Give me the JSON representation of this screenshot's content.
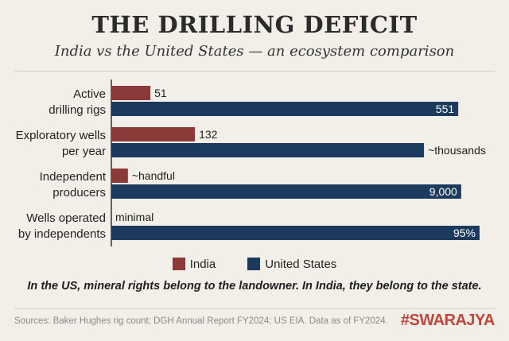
{
  "header": {
    "title": "THE DRILLING DEFICIT",
    "subtitle": "India vs the United States — an ecosystem comparison"
  },
  "chart_data": {
    "type": "bar",
    "orientation": "horizontal",
    "categories": [
      "Active\ndrilling rigs",
      "Exploratory wells\nper year",
      "Independent\nproducers",
      "Wells operated\nby independents"
    ],
    "series": [
      {
        "name": "India",
        "color": "#8b3a3a",
        "labels": [
          "51",
          "132",
          "~handful",
          "minimal"
        ],
        "relative_length": [
          0.106,
          0.227,
          0.045,
          0
        ]
      },
      {
        "name": "United States",
        "color": "#1c3a5e",
        "labels": [
          "551",
          "~thousands",
          "9,000",
          "95%"
        ],
        "relative_length": [
          0.942,
          0.849,
          0.95,
          1.0
        ]
      }
    ],
    "grid": false,
    "legend": "bottom"
  },
  "legend": {
    "india": "India",
    "us": "United States"
  },
  "note": "In the US, mineral rights belong to the landowner. In India, they belong to the state.",
  "footer": {
    "sources": "Sources: Baker Hughes rig count; DGH Annual Report FY2024; US EIA. Data as of FY2024.",
    "brand": "#SWARAJYA"
  }
}
